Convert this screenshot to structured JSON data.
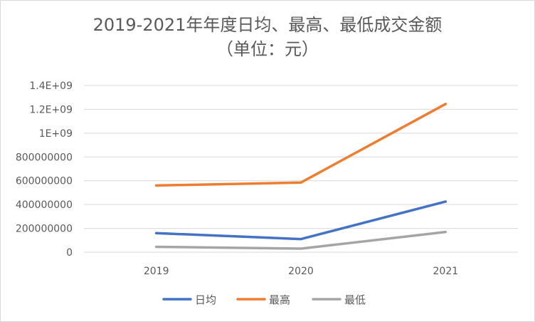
{
  "chart_data": {
    "type": "line",
    "title": "2019-2021年年度日均、最高、最低成交金额",
    "subtitle": "（单位：元）",
    "categories": [
      "2019",
      "2020",
      "2021"
    ],
    "y_tick_labels": [
      "0",
      "200000000",
      "400000000",
      "600000000",
      "800000000",
      "1E+09",
      "1.2E+09",
      "1.4E+09"
    ],
    "y_ticks": [
      0,
      200000000,
      400000000,
      600000000,
      800000000,
      1000000000,
      1200000000,
      1400000000
    ],
    "ylim": [
      0,
      1400000000
    ],
    "grid": true,
    "legend_position": "bottom",
    "series": [
      {
        "name": "日均",
        "color": "#4472C4",
        "values": [
          160000000,
          110000000,
          425000000
        ]
      },
      {
        "name": "最高",
        "color": "#ED7D31",
        "values": [
          560000000,
          585000000,
          1245000000
        ]
      },
      {
        "name": "最低",
        "color": "#A5A5A5",
        "values": [
          45000000,
          30000000,
          170000000
        ]
      }
    ]
  }
}
